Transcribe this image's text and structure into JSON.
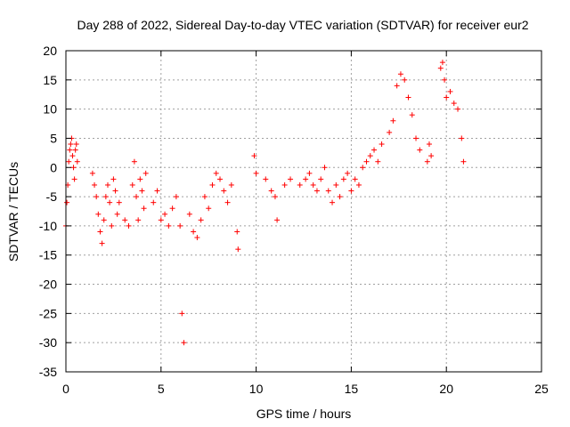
{
  "chart_data": {
    "type": "scatter",
    "title": "Day 288 of 2022, Sidereal Day-to-day VTEC variation (SDTVAR) for receiver eur2",
    "xlabel": "GPS time / hours",
    "ylabel": "SDTVAR / TECUs",
    "xlim": [
      0,
      25
    ],
    "ylim": [
      -35,
      20
    ],
    "xticks": [
      0,
      5,
      10,
      15,
      20,
      25
    ],
    "yticks": [
      -35,
      -30,
      -25,
      -20,
      -15,
      -10,
      -5,
      0,
      5,
      10,
      15,
      20
    ],
    "xtick_labels": [
      "0",
      "5",
      "10",
      "15",
      "20",
      "25"
    ],
    "ytick_labels": [
      "-35",
      "-30",
      "-25",
      "-20",
      "-15",
      "-10",
      "-5",
      "0",
      "5",
      "10",
      "15",
      "20"
    ],
    "grid": true,
    "marker": "plus",
    "color": "#ff0000",
    "series": [
      {
        "name": "SDTVAR",
        "x": [
          0.0,
          0.05,
          0.1,
          0.15,
          0.2,
          0.25,
          0.3,
          0.35,
          0.4,
          0.45,
          0.5,
          0.55,
          0.6,
          1.4,
          1.5,
          1.6,
          1.7,
          1.8,
          1.9,
          2.0,
          2.1,
          2.2,
          2.3,
          2.4,
          2.5,
          2.6,
          2.7,
          2.8,
          3.1,
          3.3,
          3.5,
          3.6,
          3.7,
          3.8,
          3.9,
          4.0,
          4.1,
          4.2,
          4.6,
          4.8,
          5.0,
          5.2,
          5.4,
          5.6,
          5.8,
          6.0,
          6.1,
          6.2,
          6.5,
          6.7,
          6.9,
          7.1,
          7.3,
          7.5,
          7.7,
          7.9,
          8.1,
          8.3,
          8.5,
          8.7,
          9.0,
          9.05,
          9.9,
          10.0,
          10.5,
          10.8,
          11.0,
          11.1,
          11.5,
          11.8,
          12.3,
          12.6,
          12.8,
          13.0,
          13.2,
          13.4,
          13.6,
          13.8,
          14.0,
          14.2,
          14.4,
          14.6,
          14.8,
          15.0,
          15.2,
          15.4,
          15.6,
          15.8,
          16.0,
          16.2,
          16.4,
          16.6,
          17.0,
          17.2,
          17.4,
          17.6,
          17.8,
          18.0,
          18.2,
          18.4,
          18.6,
          19.0,
          19.1,
          19.2,
          19.7,
          19.8,
          19.9,
          20.0,
          20.2,
          20.4,
          20.6,
          20.8,
          20.9
        ],
        "y": [
          -10,
          -6,
          -3,
          1,
          3,
          4,
          5,
          2,
          0,
          -2,
          3,
          4,
          1,
          -1,
          -3,
          -5,
          -8,
          -11,
          -13,
          -9,
          -5,
          -3,
          -6,
          -10,
          -2,
          -4,
          -8,
          -6,
          -9,
          -10,
          -3,
          1,
          -5,
          -9,
          -2,
          -4,
          -7,
          -1,
          -6,
          -4,
          -9,
          -8,
          -10,
          -7,
          -5,
          -10,
          -25,
          -30,
          -8,
          -11,
          -12,
          -9,
          -5,
          -7,
          -3,
          -1,
          -2,
          -4,
          -6,
          -3,
          -11,
          -14,
          2,
          -1,
          -2,
          -4,
          -5,
          -9,
          -3,
          -2,
          -3,
          -2,
          -1,
          -3,
          -4,
          -2,
          0,
          -4,
          -6,
          -3,
          -5,
          -2,
          -1,
          -4,
          -2,
          -3,
          0,
          1,
          2,
          3,
          1,
          4,
          6,
          8,
          14,
          16,
          15,
          12,
          9,
          5,
          3,
          1,
          4,
          2,
          17,
          18,
          15,
          12,
          13,
          11,
          10,
          5,
          1
        ]
      }
    ]
  }
}
